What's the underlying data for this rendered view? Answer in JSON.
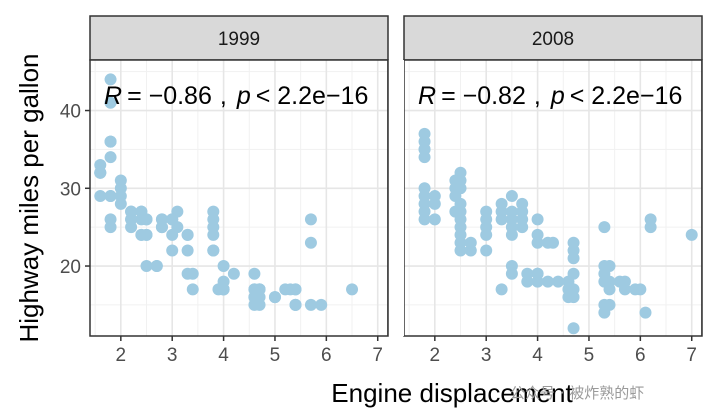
{
  "chart_data": {
    "type": "scatter",
    "xlabel": "Engine displacement",
    "ylabel": "Highway miles per gallon",
    "xlim": [
      1.4,
      7.2
    ],
    "ylim": [
      11.0,
      46.5
    ],
    "xticks": [
      2,
      3,
      4,
      5,
      6,
      7
    ],
    "yticks": [
      20,
      30,
      40
    ],
    "grid": true,
    "point_color": "#9ecae1",
    "panels": [
      {
        "facet": "1999",
        "annotation": {
          "r_label": "R",
          "r_value": "= −0.86",
          "p_label": "p",
          "p_value": "< 2.2e−16",
          "sep": ","
        },
        "points": [
          [
            1.8,
            29
          ],
          [
            1.8,
            29
          ],
          [
            2.0,
            31
          ],
          [
            2.0,
            30
          ],
          [
            2.8,
            26
          ],
          [
            2.8,
            26
          ],
          [
            3.1,
            27
          ],
          [
            1.8,
            26
          ],
          [
            1.8,
            25
          ],
          [
            2.0,
            28
          ],
          [
            2.8,
            25
          ],
          [
            3.1,
            25
          ],
          [
            2.8,
            25
          ],
          [
            2.4,
            24
          ],
          [
            3.0,
            24
          ],
          [
            3.3,
            22
          ],
          [
            3.3,
            24
          ],
          [
            3.3,
            24
          ],
          [
            3.8,
            22
          ],
          [
            3.8,
            22
          ],
          [
            4.0,
            17
          ],
          [
            4.7,
            17
          ],
          [
            4.7,
            17
          ],
          [
            4.7,
            15
          ],
          [
            5.2,
            17
          ],
          [
            5.7,
            26
          ],
          [
            5.7,
            23
          ],
          [
            4.2,
            19
          ],
          [
            5.4,
            17
          ],
          [
            3.9,
            17
          ],
          [
            4.6,
            17
          ],
          [
            4.6,
            16
          ],
          [
            5.0,
            16
          ],
          [
            5.4,
            15
          ],
          [
            4.0,
            20
          ],
          [
            4.6,
            19
          ],
          [
            5.3,
            17
          ],
          [
            6.5,
            17
          ],
          [
            2.5,
            20
          ],
          [
            2.5,
            24
          ],
          [
            2.2,
            26
          ],
          [
            2.2,
            25
          ],
          [
            2.5,
            26
          ],
          [
            2.5,
            26
          ],
          [
            3.0,
            22
          ],
          [
            4.0,
            17
          ],
          [
            5.0,
            16
          ],
          [
            5.4,
            15
          ],
          [
            4.6,
            17
          ],
          [
            3.4,
            17
          ],
          [
            3.4,
            19
          ],
          [
            4.0,
            18
          ],
          [
            4.7,
            17
          ],
          [
            5.7,
            15
          ],
          [
            5.9,
            15
          ],
          [
            1.6,
            33
          ],
          [
            1.6,
            32
          ],
          [
            1.6,
            32
          ],
          [
            1.6,
            29
          ],
          [
            1.6,
            32
          ],
          [
            1.8,
            34
          ],
          [
            1.8,
            36
          ],
          [
            1.8,
            36
          ],
          [
            1.8,
            44
          ],
          [
            1.8,
            41
          ],
          [
            2.0,
            29
          ],
          [
            2.4,
            26
          ],
          [
            2.4,
            27
          ],
          [
            3.0,
            26
          ],
          [
            3.0,
            26
          ],
          [
            2.7,
            20
          ],
          [
            2.7,
            20
          ],
          [
            2.2,
            27
          ],
          [
            2.2,
            26
          ],
          [
            2.4,
            27
          ],
          [
            3.8,
            27
          ],
          [
            3.8,
            26
          ],
          [
            3.8,
            25
          ],
          [
            3.8,
            24
          ],
          [
            4.0,
            17
          ],
          [
            4.6,
            16
          ],
          [
            4.6,
            15
          ],
          [
            5.4,
            15
          ],
          [
            5.4,
            17
          ],
          [
            4.7,
            16
          ],
          [
            3.0,
            26
          ],
          [
            2.2,
            27
          ],
          [
            2.4,
            24
          ],
          [
            3.3,
            19
          ],
          [
            2.5,
            24
          ]
        ]
      },
      {
        "facet": "2008",
        "annotation": {
          "r_label": "R",
          "r_value": "= −0.82",
          "p_label": "p",
          "p_value": "< 2.2e−16",
          "sep": ","
        },
        "points": [
          [
            1.8,
            37
          ],
          [
            1.8,
            35
          ],
          [
            1.8,
            34
          ],
          [
            1.8,
            36
          ],
          [
            1.8,
            35
          ],
          [
            1.8,
            30
          ],
          [
            1.8,
            29
          ],
          [
            1.8,
            28
          ],
          [
            1.8,
            27
          ],
          [
            1.8,
            26
          ],
          [
            2.4,
            31
          ],
          [
            2.4,
            30
          ],
          [
            2.4,
            29
          ],
          [
            2.5,
            32
          ],
          [
            2.5,
            31
          ],
          [
            2.5,
            30
          ],
          [
            2.5,
            28
          ],
          [
            2.5,
            27
          ],
          [
            2.5,
            26
          ],
          [
            2.5,
            25
          ],
          [
            2.5,
            24
          ],
          [
            2.5,
            23
          ],
          [
            2.5,
            22
          ],
          [
            2.7,
            23
          ],
          [
            2.7,
            22
          ],
          [
            3.0,
            22
          ],
          [
            3.0,
            25
          ],
          [
            3.0,
            26
          ],
          [
            3.0,
            27
          ],
          [
            3.3,
            28
          ],
          [
            3.3,
            27
          ],
          [
            3.3,
            26
          ],
          [
            3.3,
            17
          ],
          [
            3.5,
            29
          ],
          [
            3.5,
            27
          ],
          [
            3.5,
            26
          ],
          [
            3.5,
            25
          ],
          [
            3.5,
            24
          ],
          [
            3.5,
            19
          ],
          [
            3.7,
            28
          ],
          [
            3.7,
            27
          ],
          [
            3.7,
            26
          ],
          [
            3.7,
            25
          ],
          [
            3.8,
            19
          ],
          [
            3.8,
            18
          ],
          [
            4.0,
            23
          ],
          [
            4.0,
            24
          ],
          [
            4.0,
            19
          ],
          [
            4.0,
            18
          ],
          [
            4.0,
            26
          ],
          [
            4.2,
            23
          ],
          [
            4.2,
            18
          ],
          [
            4.3,
            23
          ],
          [
            4.4,
            18
          ],
          [
            4.6,
            18
          ],
          [
            4.6,
            17
          ],
          [
            4.7,
            23
          ],
          [
            4.7,
            22
          ],
          [
            4.7,
            21
          ],
          [
            4.7,
            19
          ],
          [
            4.7,
            17
          ],
          [
            4.7,
            16
          ],
          [
            4.7,
            12
          ],
          [
            5.3,
            25
          ],
          [
            5.3,
            20
          ],
          [
            5.3,
            19
          ],
          [
            5.3,
            15
          ],
          [
            5.3,
            14
          ],
          [
            5.4,
            20
          ],
          [
            5.4,
            18
          ],
          [
            5.4,
            17
          ],
          [
            5.7,
            18
          ],
          [
            5.7,
            17
          ],
          [
            5.9,
            17
          ],
          [
            6.0,
            17
          ],
          [
            6.1,
            14
          ],
          [
            6.2,
            26
          ],
          [
            6.2,
            25
          ],
          [
            7.0,
            24
          ],
          [
            2.0,
            29
          ],
          [
            2.0,
            28
          ],
          [
            2.0,
            26
          ],
          [
            3.0,
            24
          ],
          [
            2.4,
            27
          ],
          [
            4.0,
            19
          ],
          [
            5.6,
            18
          ],
          [
            4.6,
            16
          ],
          [
            5.4,
            15
          ],
          [
            3.5,
            20
          ],
          [
            5.3,
            18
          ]
        ]
      }
    ]
  },
  "watermark": "公众号 · 被炸熟的虾"
}
